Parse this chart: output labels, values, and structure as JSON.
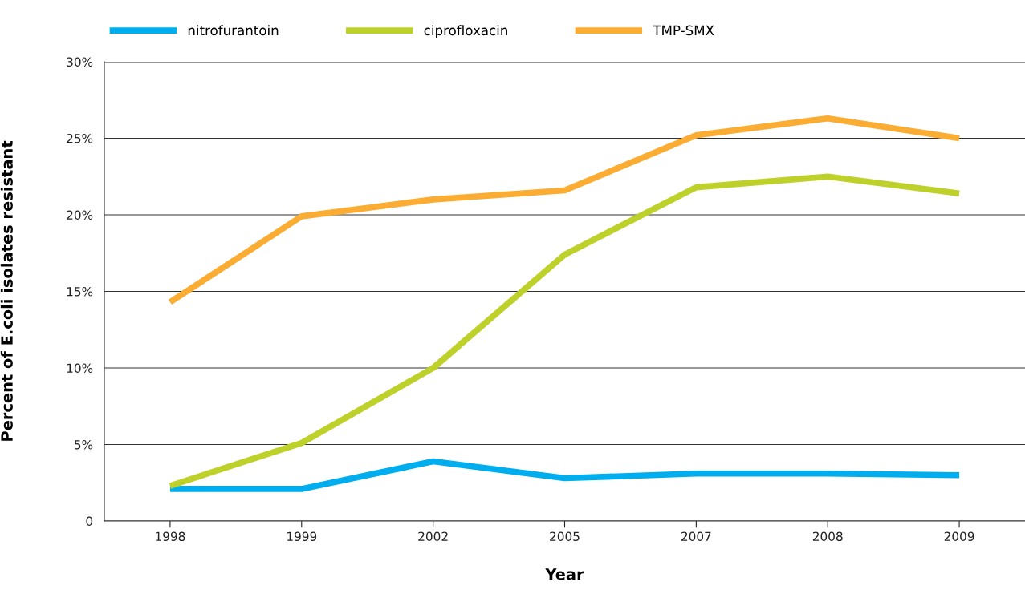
{
  "chart_data": {
    "type": "line",
    "xlabel": "Year",
    "ylabel": "Percent of E.coli isolates resistant",
    "categories": [
      "1998",
      "1999",
      "2002",
      "2005",
      "2007",
      "2008",
      "2009"
    ],
    "series": [
      {
        "name": "nitrofurantoin",
        "color": "#00aeef",
        "values": [
          2.1,
          2.1,
          3.9,
          2.8,
          3.1,
          3.1,
          3.0
        ]
      },
      {
        "name": "ciprofloxacin",
        "color": "#bed12b",
        "values": [
          2.3,
          5.1,
          10.0,
          17.4,
          21.8,
          22.5,
          21.4
        ]
      },
      {
        "name": "TMP-SMX",
        "color": "#fbac33",
        "values": [
          14.3,
          19.9,
          21.0,
          21.6,
          25.2,
          26.3,
          25.0
        ]
      }
    ],
    "ylim": [
      0,
      30
    ],
    "yticks": [
      0,
      {
        "value": 5,
        "label": "5%"
      },
      {
        "value": 10,
        "label": "10%"
      },
      {
        "value": 15,
        "label": "15%"
      },
      {
        "value": 20,
        "label": "20%"
      },
      {
        "value": 25,
        "label": "25%"
      },
      {
        "value": 30,
        "label": "30%"
      }
    ],
    "grid": "y",
    "legend": "top",
    "marker": "none",
    "line_style": "solid"
  }
}
